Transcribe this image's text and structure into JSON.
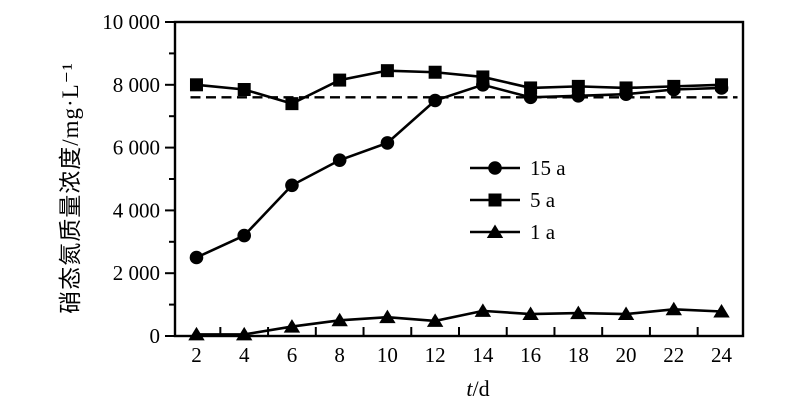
{
  "figure": {
    "background": "#ffffff",
    "ink": "#000000"
  },
  "chart_data": {
    "type": "line",
    "title": "",
    "ylabel": "硝态氮质量浓度/mg·L⁻¹",
    "xlabel_var": "t",
    "xlabel_unit": "/d",
    "xlim": [
      1.1,
      24.9
    ],
    "ylim": [
      0,
      10000
    ],
    "grid": false,
    "legend_position": "inside-right-middle",
    "x": [
      2,
      4,
      6,
      8,
      10,
      12,
      14,
      16,
      18,
      20,
      22,
      24
    ],
    "x_tick_labels": [
      "2",
      "4",
      "6",
      "8",
      "10",
      "12",
      "14",
      "16",
      "18",
      "20",
      "22",
      "24"
    ],
    "x_minor_ticks": [
      3,
      5,
      7,
      9,
      11,
      13,
      15,
      17,
      19,
      21,
      23
    ],
    "y_ticks": [
      {
        "value": 0,
        "label": "0"
      },
      {
        "value": 2000,
        "label": "2 000"
      },
      {
        "value": 4000,
        "label": "4 000"
      },
      {
        "value": 6000,
        "label": "6 000"
      },
      {
        "value": 8000,
        "label": "8 000"
      },
      {
        "value": 10000,
        "label": "10 000"
      }
    ],
    "y_minor_ticks": [
      1000,
      3000,
      5000,
      7000,
      9000
    ],
    "reference_line": {
      "style": "dashed",
      "value": 7600
    },
    "series": [
      {
        "name": "15 a",
        "marker": "circle",
        "values": [
          2500,
          3200,
          4800,
          5600,
          6150,
          7500,
          8000,
          7600,
          7650,
          7700,
          7850,
          7900
        ]
      },
      {
        "name": "5 a",
        "marker": "square",
        "values": [
          8000,
          7850,
          7400,
          8150,
          8450,
          8400,
          8250,
          7900,
          7950,
          7900,
          7950,
          8000
        ]
      },
      {
        "name": "1 a",
        "marker": "triangle",
        "values": [
          50,
          50,
          300,
          500,
          600,
          480,
          800,
          700,
          730,
          700,
          850,
          780
        ]
      }
    ]
  }
}
